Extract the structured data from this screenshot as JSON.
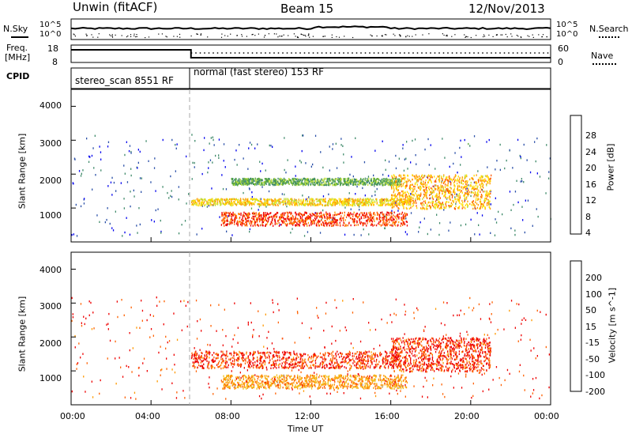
{
  "header": {
    "station": "Unwin (fitACF)",
    "beam": "Beam 15",
    "date": "12/Nov/2013"
  },
  "top_panels": {
    "nsky_label": "N.Sky",
    "nsearch_label": "N.Search",
    "nsky_ticks": [
      "10^5",
      "10^0"
    ],
    "nsearch_ticks": [
      "10^5",
      "10^0"
    ],
    "freq_label": "Freq.",
    "freq_unit": "[MHz]",
    "freq_ticks": [
      "18",
      "8"
    ],
    "nave_label": "Nave",
    "nave_ticks": [
      "60",
      "0"
    ],
    "cpid_label": "CPID",
    "cpid_segments": [
      {
        "text": "stereo_scan 8551 RF",
        "start_hour": 0,
        "end_hour": 6
      },
      {
        "text": "normal (fast stereo) 153 RF",
        "start_hour": 6,
        "end_hour": 24
      }
    ]
  },
  "time_axis": {
    "label": "Time UT",
    "ticks": [
      "00:00",
      "04:00",
      "08:00",
      "12:00",
      "16:00",
      "20:00",
      "00:00"
    ]
  },
  "colors": {
    "power": [
      "#0000ee",
      "#2a4fa8",
      "#3f8a6a",
      "#5aaa3a",
      "#bde03a",
      "#ffdc00",
      "#ff9a00",
      "#ff5a00",
      "#ee0000"
    ],
    "velocity": [
      "#1030a0",
      "#2e56c8",
      "#3c8c3c",
      "#5ad040",
      "#aaaaaa",
      "#f0c020",
      "#ff9a00",
      "#ff6000",
      "#ee0000"
    ],
    "cpid_change_line": "#aaaaaa"
  },
  "chart_data": [
    {
      "type": "heatmap",
      "title": "Power",
      "ylabel": "Slant Range [km]",
      "xlabel": "Time UT",
      "ylim": [
        0,
        4500
      ],
      "yticks": [
        "4000",
        "3000",
        "2000",
        "1000"
      ],
      "colorbar_label": "Power [dB]",
      "colorbar_ticks": [
        "28",
        "24",
        "20",
        "16",
        "12",
        "8",
        "4"
      ],
      "features": [
        {
          "desc": "sparse noise",
          "t": [
            0,
            24
          ],
          "range": [
            200,
            3200
          ],
          "value": 6
        },
        {
          "desc": "band",
          "t": [
            6,
            17
          ],
          "range": [
            1100,
            1300
          ],
          "value": 20
        },
        {
          "desc": "band",
          "t": [
            8,
            16.5
          ],
          "range": [
            1700,
            1900
          ],
          "value": 12
        },
        {
          "desc": "band",
          "t": [
            7.5,
            16.8
          ],
          "range": [
            500,
            900
          ],
          "value": 28
        },
        {
          "desc": "band",
          "t": [
            16,
            21
          ],
          "range": [
            1000,
            2000
          ],
          "value": 22
        }
      ]
    },
    {
      "type": "heatmap",
      "title": "Velocity",
      "ylabel": "Slant Range [km]",
      "xlabel": "Time UT",
      "ylim": [
        0,
        4500
      ],
      "yticks": [
        "4000",
        "3000",
        "2000",
        "1000"
      ],
      "colorbar_label": "Velocity [m s^-1]",
      "colorbar_ticks": [
        "200",
        "100",
        "50",
        "15",
        "-15",
        "-50",
        "-100",
        "-200"
      ],
      "features": [
        {
          "desc": "band",
          "t": [
            6,
            16.5
          ],
          "range": [
            1100,
            1600
          ],
          "value": -200
        },
        {
          "desc": "band",
          "t": [
            7.5,
            16.8
          ],
          "range": [
            500,
            900
          ],
          "value": -100
        },
        {
          "desc": "band",
          "t": [
            16,
            21
          ],
          "range": [
            1000,
            2000
          ],
          "value": -200
        },
        {
          "desc": "sparse noise",
          "t": [
            0,
            24
          ],
          "range": [
            200,
            3200
          ],
          "value": -200
        }
      ]
    }
  ]
}
